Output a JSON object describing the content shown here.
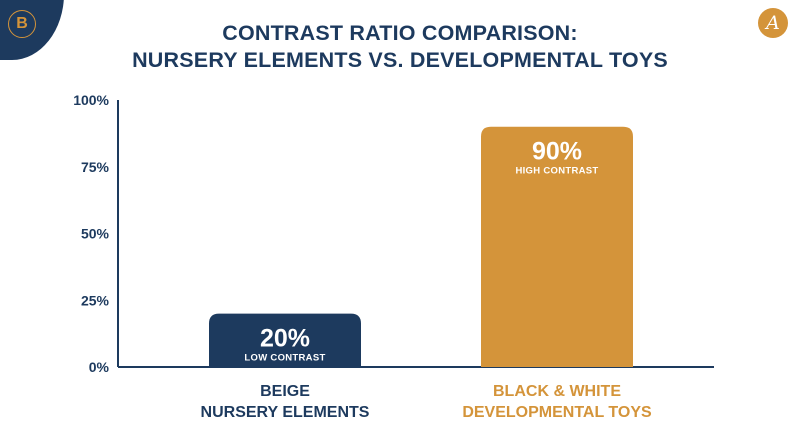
{
  "branding": {
    "left_logo": "B",
    "right_logo": "A",
    "navy": "#1d3a5e",
    "gold": "#d4943a"
  },
  "chart_data": {
    "type": "bar",
    "title_lines": [
      "CONTRAST RATIO COMPARISON:",
      "NURSERY ELEMENTS VS. DEVELOPMENTAL TOYS"
    ],
    "categories": [
      [
        "BEIGE",
        "NURSERY ELEMENTS"
      ],
      [
        "BLACK & WHITE",
        "DEVELOPMENTAL TOYS"
      ]
    ],
    "values": [
      20,
      90
    ],
    "value_labels": [
      "20%",
      "90%"
    ],
    "bar_notes": [
      "LOW CONTRAST",
      "HIGH CONTRAST"
    ],
    "bar_colors": [
      "#1d3a5e",
      "#d4943a"
    ],
    "label_colors": [
      "#1d3a5e",
      "#d4943a"
    ],
    "yticks": [
      0,
      25,
      50,
      75,
      100
    ],
    "ytick_labels": [
      "0%",
      "25%",
      "50%",
      "75%",
      "100%"
    ],
    "ylim": [
      0,
      100
    ],
    "grid": false
  }
}
